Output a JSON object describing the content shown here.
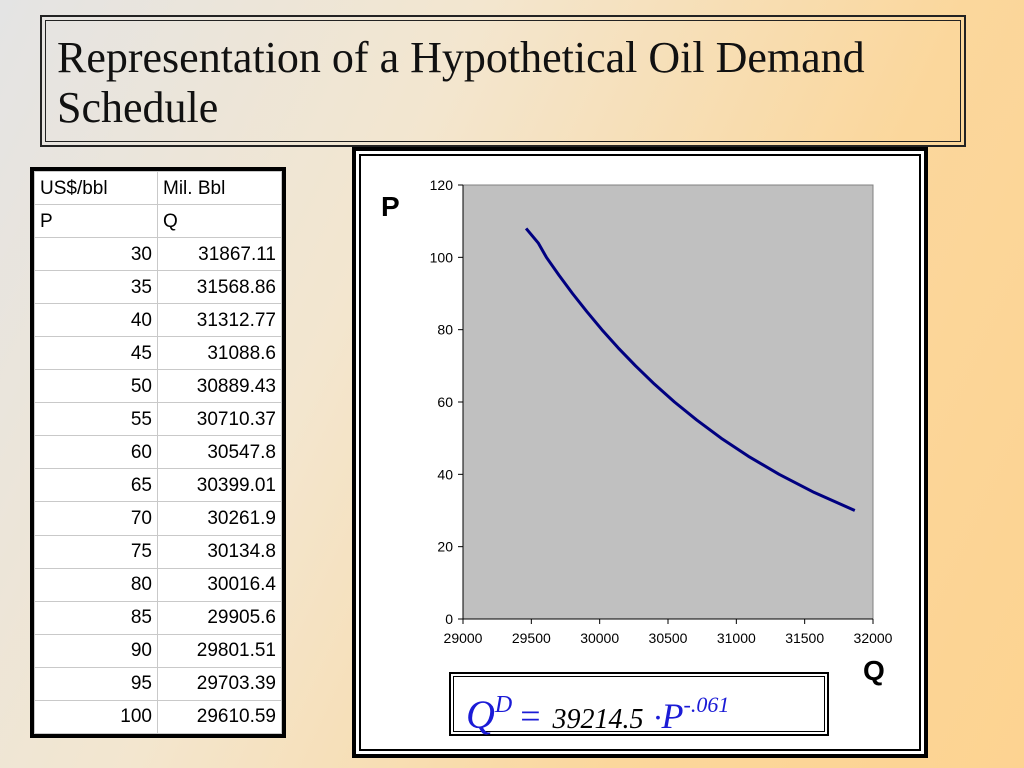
{
  "slide": {
    "title": "Representation of a Hypothetical Oil Demand Schedule"
  },
  "table": {
    "header_row1": [
      "US$/bbl",
      "Mil. Bbl"
    ],
    "header_row2": [
      "P",
      "Q"
    ],
    "rows": [
      [
        "30",
        "31867.11"
      ],
      [
        "35",
        "31568.86"
      ],
      [
        "40",
        "31312.77"
      ],
      [
        "45",
        "31088.6"
      ],
      [
        "50",
        "30889.43"
      ],
      [
        "55",
        "30710.37"
      ],
      [
        "60",
        "30547.8"
      ],
      [
        "65",
        "30399.01"
      ],
      [
        "70",
        "30261.9"
      ],
      [
        "75",
        "30134.8"
      ],
      [
        "80",
        "30016.4"
      ],
      [
        "85",
        "29905.6"
      ],
      [
        "90",
        "29801.51"
      ],
      [
        "95",
        "29703.39"
      ],
      [
        "100",
        "29610.59"
      ]
    ]
  },
  "formula": {
    "lhs": "Q",
    "lhs_sup": "D",
    "equals": "=",
    "coefficient": "39214.5",
    "dot": "·",
    "variable": "P",
    "exponent": "-.061"
  },
  "chart_data": {
    "type": "line",
    "xlabel": "Q",
    "ylabel": "P",
    "xlim": [
      29000,
      32000
    ],
    "ylim": [
      0,
      120
    ],
    "xticks": [
      "29000",
      "29500",
      "30000",
      "30500",
      "31000",
      "31500",
      "32000"
    ],
    "yticks": [
      "0",
      "20",
      "40",
      "60",
      "80",
      "100",
      "120"
    ],
    "grid": false,
    "plot_background": "#c0c0c0",
    "line_color": "#000080",
    "series": [
      {
        "x": [
          31867.11,
          31568.86,
          31312.77,
          31088.6,
          30889.43,
          30710.37,
          30547.8,
          30399.01,
          30261.9,
          30134.8,
          30016.4,
          29905.6,
          29801.51,
          29703.39,
          29610.59,
          29550,
          29462
        ],
        "y": [
          30,
          35,
          40,
          45,
          50,
          55,
          60,
          65,
          70,
          75,
          80,
          85,
          90,
          95,
          100,
          104,
          108
        ]
      }
    ]
  }
}
